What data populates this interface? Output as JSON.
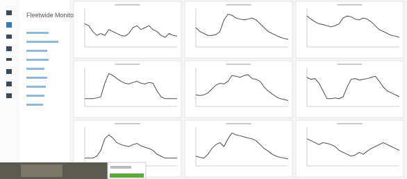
{
  "sidebar": {
    "title": "Fleetwide Monitoring"
  },
  "chart_data": [
    {
      "type": "line",
      "color": "#4a4a4a",
      "ylim": [
        0,
        100
      ],
      "values": [
        60,
        55,
        40,
        30,
        35,
        30,
        45,
        40,
        35,
        30,
        28,
        35,
        50,
        55,
        45,
        50,
        55,
        45,
        40,
        30,
        25,
        35,
        30,
        28
      ]
    },
    {
      "type": "line",
      "color": "#4a4a4a",
      "ylim": [
        0,
        100
      ],
      "values": [
        50,
        40,
        35,
        30,
        30,
        32,
        40,
        70,
        85,
        82,
        75,
        72,
        70,
        72,
        75,
        70,
        60,
        50,
        40,
        35,
        30,
        25,
        22,
        20
      ]
    },
    {
      "type": "line",
      "color": "#4a4a4a",
      "ylim": [
        0,
        100
      ],
      "values": [
        80,
        72,
        65,
        60,
        58,
        55,
        52,
        55,
        60,
        75,
        80,
        78,
        72,
        70,
        75,
        72,
        65,
        55,
        45,
        40,
        35,
        30,
        28,
        25
      ]
    },
    {
      "type": "line",
      "color": "#4a4a4a",
      "ylim": [
        0,
        100
      ],
      "values": [
        20,
        20,
        20,
        22,
        25,
        60,
        85,
        80,
        72,
        65,
        60,
        58,
        62,
        65,
        60,
        58,
        62,
        60,
        40,
        25,
        20,
        20,
        20,
        20
      ]
    },
    {
      "type": "line",
      "color": "#4a4a4a",
      "ylim": [
        0,
        100
      ],
      "values": [
        30,
        28,
        30,
        35,
        45,
        55,
        60,
        58,
        65,
        80,
        78,
        75,
        80,
        82,
        72,
        70,
        65,
        50,
        40,
        32,
        25,
        20,
        18,
        15
      ]
    },
    {
      "type": "line",
      "color": "#4a4a4a",
      "ylim": [
        0,
        100
      ],
      "values": [
        75,
        70,
        72,
        60,
        40,
        20,
        20,
        22,
        20,
        25,
        50,
        70,
        72,
        68,
        70,
        72,
        75,
        78,
        65,
        50,
        40,
        35,
        30,
        25
      ]
    },
    {
      "type": "line",
      "color": "#4a4a4a",
      "ylim": [
        0,
        100
      ],
      "values": [
        20,
        20,
        20,
        25,
        40,
        70,
        80,
        72,
        60,
        55,
        52,
        50,
        55,
        58,
        52,
        48,
        45,
        40,
        30,
        25,
        20,
        20,
        20,
        20
      ]
    },
    {
      "type": "line",
      "color": "#4a4a4a",
      "ylim": [
        0,
        100
      ],
      "values": [
        25,
        22,
        20,
        30,
        45,
        55,
        60,
        50,
        70,
        85,
        80,
        78,
        75,
        72,
        70,
        65,
        55,
        45,
        38,
        30,
        25,
        22,
        20,
        18
      ]
    },
    {
      "type": "line",
      "color": "#4a4a4a",
      "ylim": [
        0,
        100
      ],
      "values": [
        70,
        65,
        60,
        55,
        60,
        58,
        55,
        50,
        40,
        35,
        30,
        25,
        28,
        35,
        30,
        38,
        45,
        50,
        55,
        60,
        55,
        50,
        45,
        40
      ]
    }
  ]
}
